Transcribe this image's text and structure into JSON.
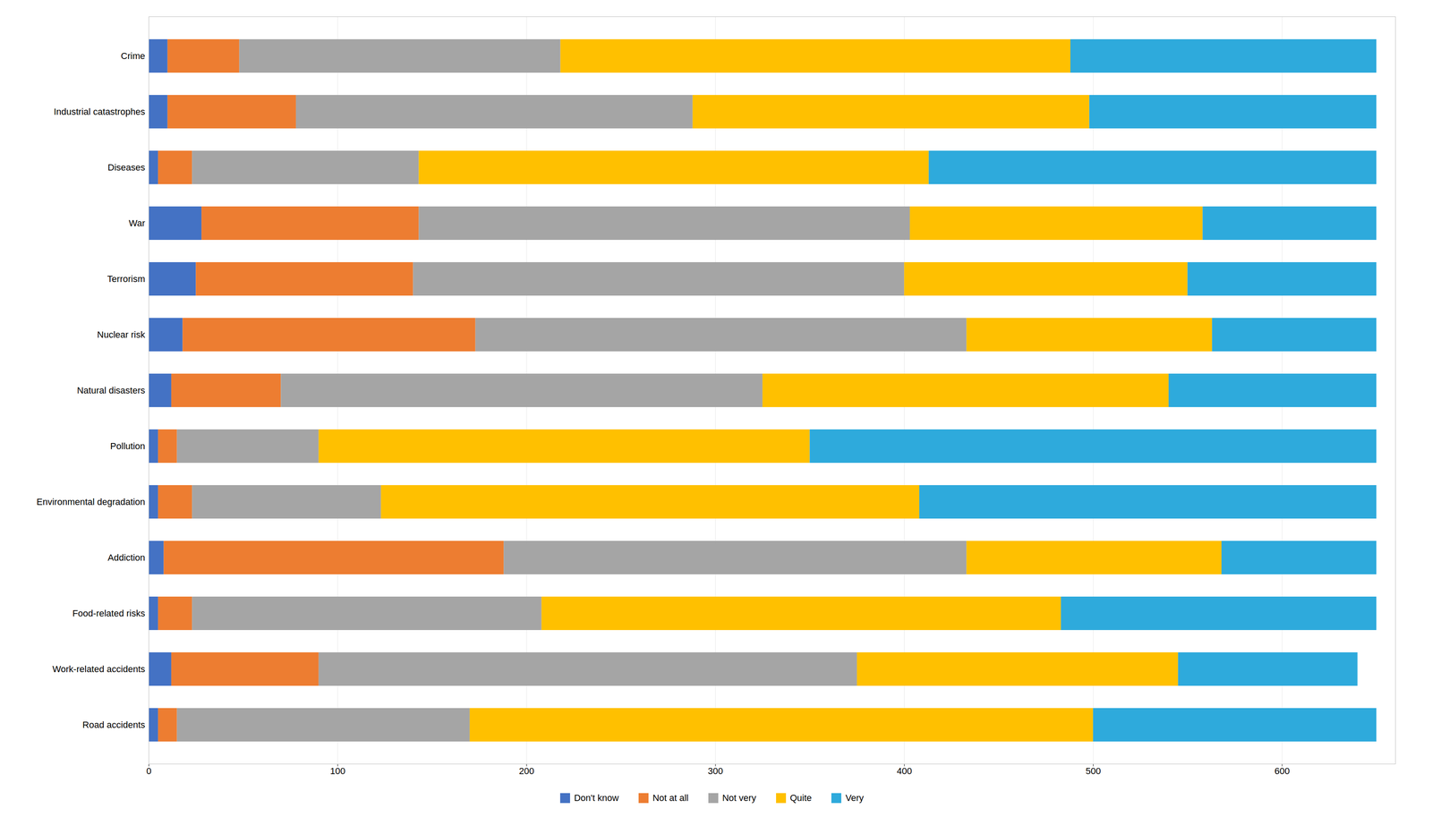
{
  "chart_data": {
    "type": "bar",
    "orientation": "horizontal",
    "stacked": true,
    "categories": [
      "Crime",
      "Industrial catastrophes",
      "Diseases",
      "War",
      "Terrorism",
      "Nuclear risk",
      "Natural disasters",
      "Pollution",
      "Environmental degradation",
      "Addiction",
      "Food-related risks",
      "Work-related accidents",
      "Road accidents"
    ],
    "series": [
      {
        "name": "Don't know",
        "color": "#4472c4",
        "values": [
          10,
          10,
          5,
          28,
          25,
          18,
          12,
          5,
          5,
          8,
          5,
          12,
          5
        ]
      },
      {
        "name": "Not at all",
        "color": "#ed7d31",
        "values": [
          38,
          68,
          18,
          115,
          115,
          155,
          58,
          10,
          18,
          180,
          18,
          78,
          10
        ]
      },
      {
        "name": "Not very",
        "color": "#a5a5a5",
        "values": [
          170,
          210,
          120,
          260,
          260,
          260,
          255,
          75,
          100,
          245,
          185,
          285,
          155
        ]
      },
      {
        "name": "Quite",
        "color": "#ffc000",
        "values": [
          270,
          210,
          270,
          155,
          150,
          130,
          215,
          260,
          285,
          135,
          275,
          170,
          330
        ]
      },
      {
        "name": "Very",
        "color": "#2eaadc",
        "values": [
          162,
          152,
          237,
          92,
          100,
          87,
          110,
          300,
          242,
          82,
          167,
          95,
          150
        ]
      }
    ],
    "xlim": [
      0,
      660
    ],
    "xticks": [
      0,
      100,
      200,
      300,
      400,
      500,
      600
    ],
    "grid": true,
    "legend": "bottom"
  }
}
